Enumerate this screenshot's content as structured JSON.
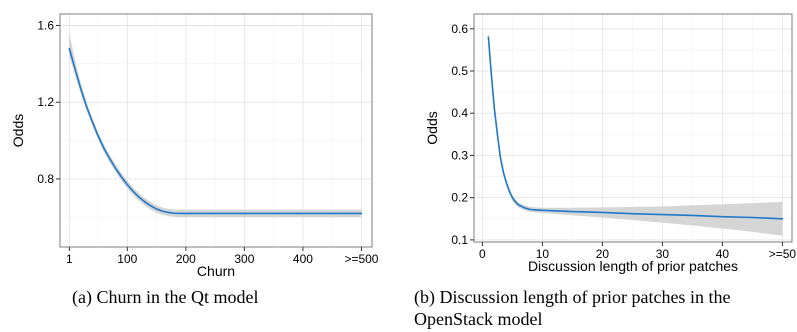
{
  "chart_data": [
    {
      "type": "line",
      "x_tick_labels": [
        "1",
        "100",
        "200",
        "300",
        "400",
        ">=500"
      ],
      "x_tick_values": [
        1,
        100,
        200,
        300,
        400,
        500
      ],
      "y_tick_labels": [
        "0.8",
        "1.2",
        "1.6"
      ],
      "y_tick_values": [
        0.8,
        1.2,
        1.6
      ],
      "xlabel": "Churn",
      "ylabel": "Odds",
      "xlim": [
        -15,
        518
      ],
      "ylim": [
        0.445,
        1.66
      ],
      "grid": true,
      "series": [
        {
          "type": "line",
          "color": "#1f78c8",
          "x": [
            1,
            10,
            20,
            30,
            40,
            50,
            60,
            70,
            80,
            90,
            100,
            110,
            120,
            130,
            140,
            150,
            160,
            170,
            180,
            190,
            200,
            250,
            300,
            350,
            400,
            450,
            500
          ],
          "y": [
            1.48,
            1.38,
            1.275,
            1.18,
            1.1,
            1.025,
            0.96,
            0.905,
            0.855,
            0.81,
            0.77,
            0.735,
            0.705,
            0.68,
            0.66,
            0.643,
            0.632,
            0.625,
            0.621,
            0.62,
            0.62,
            0.62,
            0.62,
            0.62,
            0.62,
            0.62,
            0.62
          ]
        },
        {
          "type": "band",
          "color": "#d3d3d3",
          "x": [
            1,
            10,
            20,
            30,
            40,
            50,
            60,
            70,
            80,
            90,
            100,
            110,
            120,
            130,
            140,
            150,
            160,
            170,
            180,
            190,
            200,
            250,
            300,
            350,
            400,
            450,
            500
          ],
          "lower": [
            1.44,
            1.35,
            1.25,
            1.16,
            1.08,
            1.005,
            0.94,
            0.885,
            0.835,
            0.79,
            0.75,
            0.715,
            0.685,
            0.66,
            0.64,
            0.624,
            0.613,
            0.606,
            0.602,
            0.6,
            0.6,
            0.6,
            0.6,
            0.6,
            0.6,
            0.6,
            0.6
          ],
          "upper": [
            1.56,
            1.43,
            1.305,
            1.205,
            1.12,
            1.045,
            0.98,
            0.925,
            0.875,
            0.83,
            0.79,
            0.755,
            0.725,
            0.7,
            0.68,
            0.662,
            0.651,
            0.644,
            0.64,
            0.64,
            0.64,
            0.64,
            0.64,
            0.64,
            0.64,
            0.64,
            0.64
          ]
        }
      ]
    },
    {
      "type": "line",
      "x_tick_labels": [
        "0",
        "10",
        "20",
        "30",
        "40",
        ">=50"
      ],
      "x_tick_values": [
        0,
        10,
        20,
        30,
        40,
        50
      ],
      "y_tick_labels": [
        "0.1",
        "0.2",
        "0.3",
        "0.4",
        "0.5",
        "0.6"
      ],
      "y_tick_values": [
        0.1,
        0.2,
        0.3,
        0.4,
        0.5,
        0.6
      ],
      "xlabel": "Discussion length of prior patches",
      "ylabel": "Odds",
      "xlim": [
        -1.4,
        51.6
      ],
      "ylim": [
        0.095,
        0.635
      ],
      "grid": true,
      "series": [
        {
          "type": "line",
          "color": "#1f78c8",
          "x": [
            1,
            1.5,
            2,
            2.5,
            3,
            3.5,
            4,
            4.5,
            5,
            5.5,
            6,
            7,
            8,
            9,
            10,
            15,
            20,
            25,
            30,
            35,
            40,
            45,
            50
          ],
          "y": [
            0.58,
            0.49,
            0.41,
            0.35,
            0.295,
            0.26,
            0.235,
            0.215,
            0.2,
            0.19,
            0.183,
            0.176,
            0.172,
            0.171,
            0.17,
            0.167,
            0.165,
            0.162,
            0.16,
            0.158,
            0.155,
            0.153,
            0.15
          ]
        },
        {
          "type": "band",
          "color": "#d3d3d3",
          "x": [
            1,
            1.5,
            2,
            2.5,
            3,
            3.5,
            4,
            4.5,
            5,
            5.5,
            6,
            7,
            8,
            9,
            10,
            15,
            20,
            25,
            30,
            35,
            40,
            45,
            50
          ],
          "lower": [
            0.565,
            0.48,
            0.4,
            0.34,
            0.287,
            0.252,
            0.228,
            0.208,
            0.193,
            0.183,
            0.177,
            0.17,
            0.166,
            0.165,
            0.164,
            0.158,
            0.153,
            0.147,
            0.141,
            0.134,
            0.127,
            0.119,
            0.11
          ],
          "upper": [
            0.595,
            0.5,
            0.42,
            0.36,
            0.303,
            0.268,
            0.242,
            0.222,
            0.207,
            0.197,
            0.189,
            0.182,
            0.178,
            0.177,
            0.176,
            0.176,
            0.177,
            0.178,
            0.179,
            0.182,
            0.184,
            0.187,
            0.19
          ]
        }
      ]
    }
  ],
  "captions": {
    "a": "(a)  Churn in the Qt model",
    "b": "(b)  Discussion length of prior patches in the OpenStack model"
  }
}
